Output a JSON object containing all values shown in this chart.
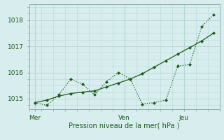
{
  "xlabel": "Pression niveau de la mer( hPa )",
  "bg_color": "#d8eeee",
  "grid_color": "#b8d8d8",
  "line_color": "#1a5c1a",
  "vline_color": "#8ab0b0",
  "xlim": [
    0,
    16
  ],
  "ylim": [
    1014.6,
    1018.6
  ],
  "yticks": [
    1015,
    1016,
    1017,
    1018
  ],
  "xtick_labels": [
    "Mer",
    "Ven",
    "Jeu"
  ],
  "xtick_positions": [
    0.5,
    8,
    13
  ],
  "vlines": [
    0.5,
    8,
    13
  ],
  "series1_x": [
    0.5,
    1.5,
    2.5,
    3.5,
    4.5,
    5.5,
    6.5,
    7.5,
    8.5,
    9.5,
    10.5,
    11.5,
    12.5,
    13.5,
    14.5,
    15.5
  ],
  "series1_y": [
    1014.85,
    1014.95,
    1015.1,
    1015.2,
    1015.25,
    1015.3,
    1015.45,
    1015.6,
    1015.75,
    1015.95,
    1016.2,
    1016.45,
    1016.7,
    1016.95,
    1017.2,
    1017.5
  ],
  "series2_x": [
    0.5,
    1.5,
    2.5,
    3.5,
    4.5,
    5.5,
    6.5,
    7.5,
    8.5,
    9.5,
    10.5,
    11.5,
    12.5,
    13.5,
    14.5,
    15.5
  ],
  "series2_y": [
    1014.85,
    1014.75,
    1015.15,
    1015.75,
    1015.55,
    1015.15,
    1015.65,
    1016.0,
    1015.75,
    1014.8,
    1014.85,
    1014.95,
    1016.25,
    1016.3,
    1017.75,
    1018.2
  ]
}
